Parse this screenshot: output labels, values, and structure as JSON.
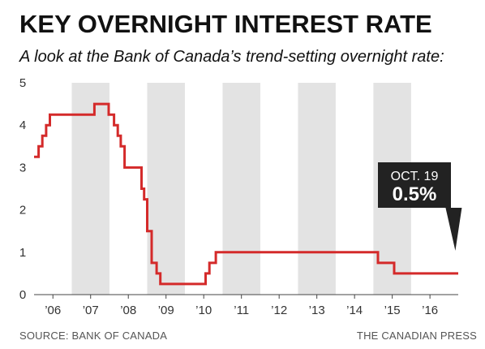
{
  "title": "KEY OVERNIGHT INTEREST RATE",
  "subtitle": "A look at the Bank of Canada’s trend-setting overnight rate:",
  "source": "SOURCE: BANK OF CANADA",
  "credit": "THE CANADIAN PRESS",
  "colors": {
    "line": "#d42a2a",
    "band": "#e3e3e3",
    "callout": "#222222",
    "text": "#111111"
  },
  "chart_data": {
    "type": "line",
    "title": "KEY OVERNIGHT INTEREST RATE",
    "xlabel": "",
    "ylabel": "",
    "ylim": [
      0,
      5
    ],
    "xlim": [
      2005.5,
      2016.75
    ],
    "y_ticks": [
      0,
      1,
      2,
      3,
      4,
      5
    ],
    "x_ticks": [
      {
        "label": "’06",
        "x": 2006.0
      },
      {
        "label": "’07",
        "x": 2007.0
      },
      {
        "label": "’08",
        "x": 2008.0
      },
      {
        "label": "’09",
        "x": 2009.0
      },
      {
        "label": "’10",
        "x": 2010.0
      },
      {
        "label": "’11",
        "x": 2011.0
      },
      {
        "label": "’12",
        "x": 2012.0
      },
      {
        "label": "’13",
        "x": 2013.0
      },
      {
        "label": "’14",
        "x": 2014.0
      },
      {
        "label": "’15",
        "x": 2015.0
      },
      {
        "label": "’16",
        "x": 2016.0
      }
    ],
    "shaded_years": [
      2007,
      2009,
      2011,
      2013,
      2015
    ],
    "series": [
      {
        "step": true,
        "points": [
          [
            2005.5,
            3.25
          ],
          [
            2005.62,
            3.5
          ],
          [
            2005.72,
            3.75
          ],
          [
            2005.82,
            4.0
          ],
          [
            2005.92,
            4.25
          ],
          [
            2007.1,
            4.5
          ],
          [
            2007.48,
            4.25
          ],
          [
            2007.62,
            4.0
          ],
          [
            2007.72,
            3.75
          ],
          [
            2007.8,
            3.5
          ],
          [
            2007.9,
            3.0
          ],
          [
            2008.35,
            2.5
          ],
          [
            2008.42,
            2.25
          ],
          [
            2008.5,
            1.5
          ],
          [
            2008.62,
            0.75
          ],
          [
            2008.75,
            0.5
          ],
          [
            2008.85,
            0.25
          ],
          [
            2010.05,
            0.5
          ],
          [
            2010.15,
            0.75
          ],
          [
            2010.32,
            1.0
          ],
          [
            2014.62,
            0.75
          ],
          [
            2015.05,
            0.5
          ],
          [
            2016.75,
            0.5
          ]
        ]
      }
    ],
    "annotations": [
      {
        "label": "OCT. 19",
        "value": "0.5%",
        "x": 2016.63,
        "y": 0.5
      }
    ],
    "grid": false,
    "legend": "none"
  }
}
